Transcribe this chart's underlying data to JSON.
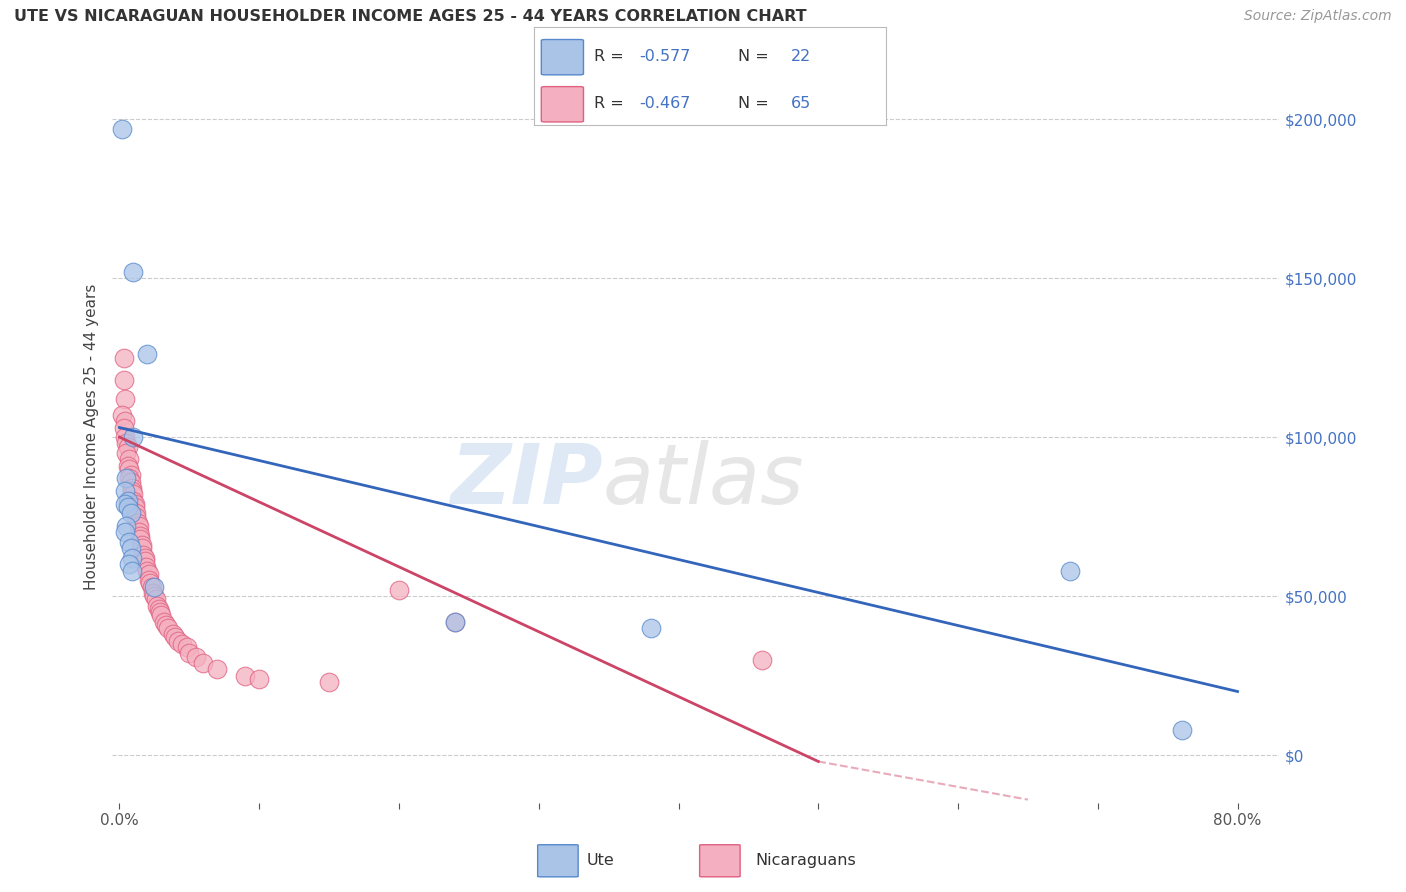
{
  "title": "UTE VS NICARAGUAN HOUSEHOLDER INCOME AGES 25 - 44 YEARS CORRELATION CHART",
  "source": "Source: ZipAtlas.com",
  "ylabel": "Householder Income Ages 25 - 44 years",
  "ytick_labels": [
    "$0",
    "$50,000",
    "$100,000",
    "$150,000",
    "$200,000"
  ],
  "ytick_values": [
    0,
    50000,
    100000,
    150000,
    200000
  ],
  "xlim": [
    -0.005,
    0.83
  ],
  "ylim": [
    -15000,
    215000
  ],
  "ute_color": "#aac4e8",
  "nic_color": "#f4b0c0",
  "ute_edge_color": "#5588cc",
  "nic_edge_color": "#e06080",
  "ute_line_color": "#3366bb",
  "nic_line_color": "#cc4466",
  "bg_color": "#ffffff",
  "grid_color": "#cccccc",
  "ute_scatter": [
    [
      0.002,
      197000
    ],
    [
      0.01,
      152000
    ],
    [
      0.02,
      126000
    ],
    [
      0.01,
      100000
    ],
    [
      0.005,
      87000
    ],
    [
      0.004,
      83000
    ],
    [
      0.006,
      80000
    ],
    [
      0.004,
      79000
    ],
    [
      0.006,
      78000
    ],
    [
      0.008,
      76000
    ],
    [
      0.005,
      72000
    ],
    [
      0.004,
      70000
    ],
    [
      0.007,
      67000
    ],
    [
      0.008,
      65000
    ],
    [
      0.009,
      62000
    ],
    [
      0.007,
      60000
    ],
    [
      0.009,
      58000
    ],
    [
      0.025,
      53000
    ],
    [
      0.24,
      42000
    ],
    [
      0.38,
      40000
    ],
    [
      0.68,
      58000
    ],
    [
      0.76,
      8000
    ]
  ],
  "nic_scatter": [
    [
      0.003,
      125000
    ],
    [
      0.003,
      118000
    ],
    [
      0.004,
      112000
    ],
    [
      0.002,
      107000
    ],
    [
      0.004,
      105000
    ],
    [
      0.003,
      103000
    ],
    [
      0.004,
      100000
    ],
    [
      0.005,
      98000
    ],
    [
      0.006,
      97000
    ],
    [
      0.005,
      95000
    ],
    [
      0.007,
      93000
    ],
    [
      0.006,
      91000
    ],
    [
      0.007,
      90000
    ],
    [
      0.008,
      88000
    ],
    [
      0.007,
      87000
    ],
    [
      0.008,
      86000
    ],
    [
      0.009,
      84000
    ],
    [
      0.009,
      83000
    ],
    [
      0.01,
      82000
    ],
    [
      0.01,
      80000
    ],
    [
      0.011,
      79000
    ],
    [
      0.011,
      78000
    ],
    [
      0.012,
      76000
    ],
    [
      0.012,
      75000
    ],
    [
      0.013,
      73000
    ],
    [
      0.014,
      72000
    ],
    [
      0.014,
      70000
    ],
    [
      0.015,
      69000
    ],
    [
      0.015,
      68000
    ],
    [
      0.016,
      66000
    ],
    [
      0.016,
      65000
    ],
    [
      0.017,
      63000
    ],
    [
      0.018,
      62000
    ],
    [
      0.018,
      61000
    ],
    [
      0.019,
      59000
    ],
    [
      0.02,
      58000
    ],
    [
      0.021,
      57000
    ],
    [
      0.021,
      55000
    ],
    [
      0.022,
      54000
    ],
    [
      0.023,
      53000
    ],
    [
      0.024,
      51000
    ],
    [
      0.025,
      50000
    ],
    [
      0.026,
      49000
    ],
    [
      0.027,
      47000
    ],
    [
      0.028,
      46000
    ],
    [
      0.029,
      45000
    ],
    [
      0.03,
      44000
    ],
    [
      0.032,
      42000
    ],
    [
      0.033,
      41000
    ],
    [
      0.035,
      40000
    ],
    [
      0.038,
      38000
    ],
    [
      0.04,
      37000
    ],
    [
      0.042,
      36000
    ],
    [
      0.045,
      35000
    ],
    [
      0.048,
      34000
    ],
    [
      0.05,
      32000
    ],
    [
      0.055,
      31000
    ],
    [
      0.06,
      29000
    ],
    [
      0.07,
      27000
    ],
    [
      0.09,
      25000
    ],
    [
      0.1,
      24000
    ],
    [
      0.15,
      23000
    ],
    [
      0.2,
      52000
    ],
    [
      0.24,
      42000
    ],
    [
      0.46,
      30000
    ]
  ],
  "ute_line": {
    "x0": 0.0,
    "y0": 103000,
    "x1": 0.8,
    "y1": 20000
  },
  "nic_line_solid": {
    "x0": 0.0,
    "y0": 100000,
    "x1": 0.5,
    "y1": -2000
  },
  "nic_line_dash": {
    "x0": 0.5,
    "y0": -2000,
    "x1": 0.65,
    "y1": -14000
  }
}
